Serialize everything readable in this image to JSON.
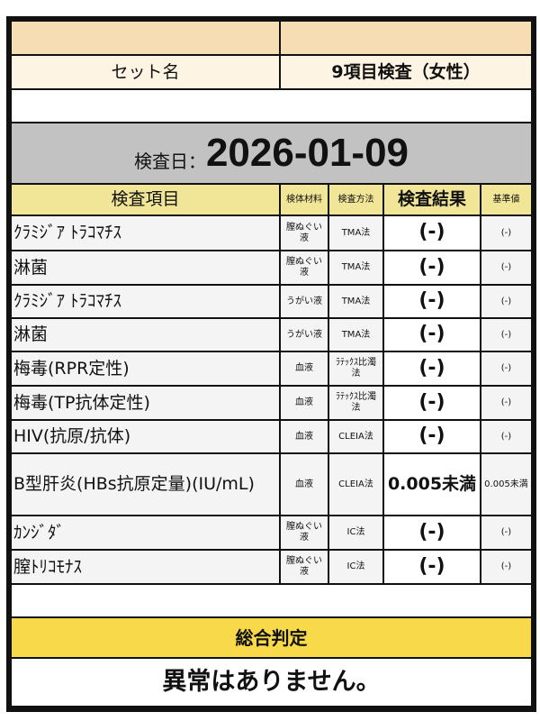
{
  "header": {
    "top_left": "",
    "top_right": "",
    "set_label": "セット名",
    "set_value": "9項目検査（女性）"
  },
  "exam_date": {
    "label": "検査日：",
    "value": "2026-01-09"
  },
  "columns": {
    "item": "検査項目",
    "material": "検体材料",
    "method": "検査方法",
    "result": "検査結果",
    "reference": "基準値"
  },
  "rows": [
    {
      "item": "ｸﾗﾐｼﾞｱ ﾄﾗｺﾏﾁｽ",
      "material": "膣ぬぐい液",
      "method": "TMA法",
      "result": "(-)",
      "reference": "(-)"
    },
    {
      "item": "淋菌",
      "material": "膣ぬぐい液",
      "method": "TMA法",
      "result": "(-)",
      "reference": "(-)"
    },
    {
      "item": "ｸﾗﾐｼﾞｱ ﾄﾗｺﾏﾁｽ",
      "material": "うがい液",
      "method": "TMA法",
      "result": "(-)",
      "reference": "(-)"
    },
    {
      "item": "淋菌",
      "material": "うがい液",
      "method": "TMA法",
      "result": "(-)",
      "reference": "(-)"
    },
    {
      "item": "梅毒(RPR定性)",
      "material": "血液",
      "method": "ﾗﾃｯｸｽ比濁法",
      "result": "(-)",
      "reference": "(-)"
    },
    {
      "item": "梅毒(TP抗体定性)",
      "material": "血液",
      "method": "ﾗﾃｯｸｽ比濁法",
      "result": "(-)",
      "reference": "(-)"
    },
    {
      "item": "HIV(抗原/抗体)",
      "material": "血液",
      "method": "CLEIA法",
      "result": "(-)",
      "reference": "(-)"
    },
    {
      "item": "B型肝炎(HBs抗原定量)(IU/mL)",
      "material": "血液",
      "method": "CLEIA法",
      "result": "0.005未満",
      "reference": "0.005未満"
    },
    {
      "item": "ｶﾝｼﾞﾀﾞ",
      "material": "膣ぬぐい液",
      "method": "IC法",
      "result": "(-)",
      "reference": "(-)"
    },
    {
      "item": "膣ﾄﾘｺﾓﾅｽ",
      "material": "膣ぬぐい液",
      "method": "IC法",
      "result": "(-)",
      "reference": "(-)"
    }
  ],
  "summary": {
    "label": "総合判定",
    "value": "異常はありません。"
  }
}
